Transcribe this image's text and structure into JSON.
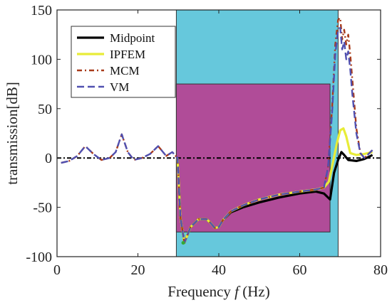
{
  "chart_data": {
    "type": "line",
    "title": "",
    "xlabel_prefix": "Frequency ",
    "xlabel_var": "f",
    "xlabel_suffix": " (Hz)",
    "ylabel": "transmission[dB]",
    "xlim": [
      0,
      80
    ],
    "ylim": [
      -100,
      150
    ],
    "xticks": [
      0,
      20,
      40,
      60,
      80
    ],
    "yticks": [
      -100,
      -50,
      0,
      50,
      100,
      150
    ],
    "grid": false,
    "legend_position": "top-left",
    "reference_line_y": 0,
    "bands": [
      {
        "x": [
          29.5,
          69.5
        ],
        "y": [
          -100,
          150
        ],
        "color": "#66c8dc"
      },
      {
        "x": [
          29.5,
          67.5
        ],
        "y": [
          -75,
          75
        ],
        "color": "#b04c98"
      }
    ],
    "series": [
      {
        "name": "Midpoint",
        "color": "#000000",
        "dash": "",
        "width": 3.2,
        "x": [
          29.8,
          30.5,
          31.5,
          33,
          35,
          37,
          38,
          39,
          40,
          41,
          43,
          46,
          50,
          55,
          60,
          64,
          66,
          67.5,
          68.5,
          69.5,
          70.3,
          71,
          72,
          74,
          76,
          78
        ],
        "y": [
          0,
          -60,
          -86,
          -70,
          -62,
          -62,
          -66,
          -71,
          -70,
          -63,
          -55,
          -50,
          -45,
          -40,
          -36,
          -34,
          -36,
          -42,
          -15,
          -2,
          6,
          3,
          -2,
          -3,
          -1,
          3
        ]
      },
      {
        "name": "IPFEM",
        "color": "#e8ec38",
        "dash": "",
        "width": 3.2,
        "x": [
          29.8,
          30.5,
          31.5,
          33,
          35,
          37,
          38,
          39,
          40,
          41,
          43,
          46,
          50,
          55,
          60,
          64,
          66,
          67.2,
          68.2,
          69.2,
          70,
          70.8,
          71.5,
          72.5,
          74,
          76,
          78
        ],
        "y": [
          0,
          -60,
          -86,
          -70,
          -62,
          -62,
          -66,
          -71,
          -70,
          -63,
          -54,
          -48,
          -42,
          -37,
          -34,
          -32,
          -30,
          -24,
          -5,
          15,
          28,
          30,
          22,
          5,
          3,
          4,
          6
        ]
      },
      {
        "name": "MCM",
        "color": "#a83a1a",
        "dash": "7,4,2,4",
        "width": 2.4,
        "x": [
          1,
          3,
          5,
          7,
          9,
          11,
          13,
          14.5,
          16,
          17.5,
          19,
          21,
          23,
          25,
          27,
          28.5,
          29.8,
          30.5,
          31.5,
          33,
          35,
          37,
          38,
          39,
          40,
          41,
          43,
          46,
          50,
          55,
          60,
          64,
          66,
          67,
          68,
          68.8,
          69.5,
          70,
          70.5,
          71,
          71.5,
          72,
          72.5,
          73,
          74,
          75,
          76,
          78
        ],
        "y": [
          -5,
          -3,
          2,
          12,
          4,
          -2,
          0,
          6,
          24,
          6,
          -2,
          0,
          4,
          12,
          2,
          6,
          0,
          -60,
          -86,
          -70,
          -62,
          -62,
          -66,
          -71,
          -70,
          -63,
          -54,
          -48,
          -42,
          -37,
          -34,
          -32,
          -30,
          -10,
          50,
          115,
          140,
          142,
          120,
          130,
          115,
          125,
          105,
          80,
          30,
          5,
          0,
          8
        ]
      },
      {
        "name": "VM",
        "color": "#5050b0",
        "dash": "10,5",
        "width": 2.4,
        "x": [
          1,
          3,
          5,
          7,
          9,
          11,
          13,
          14.5,
          16,
          17.5,
          19,
          21,
          23,
          25,
          27,
          28.5,
          29.8,
          30.5,
          31.5,
          33,
          35,
          37,
          38,
          39,
          40,
          41,
          43,
          46,
          50,
          55,
          60,
          64,
          66,
          67,
          68,
          68.8,
          69.5,
          70,
          70.5,
          71,
          71.5,
          72,
          72.5,
          73,
          74,
          75,
          76,
          78
        ],
        "y": [
          -5,
          -3,
          2,
          12,
          4,
          -2,
          0,
          6,
          24,
          6,
          -2,
          0,
          4,
          12,
          2,
          6,
          0,
          -60,
          -86,
          -70,
          -62,
          -62,
          -66,
          -71,
          -70,
          -63,
          -54,
          -48,
          -42,
          -37,
          -34,
          -32,
          -30,
          -10,
          45,
          105,
          130,
          132,
          110,
          118,
          100,
          108,
          90,
          65,
          25,
          5,
          0,
          8
        ]
      }
    ],
    "markers": [
      {
        "x": 31.2,
        "y": -86,
        "color": "#33aa33"
      }
    ]
  }
}
